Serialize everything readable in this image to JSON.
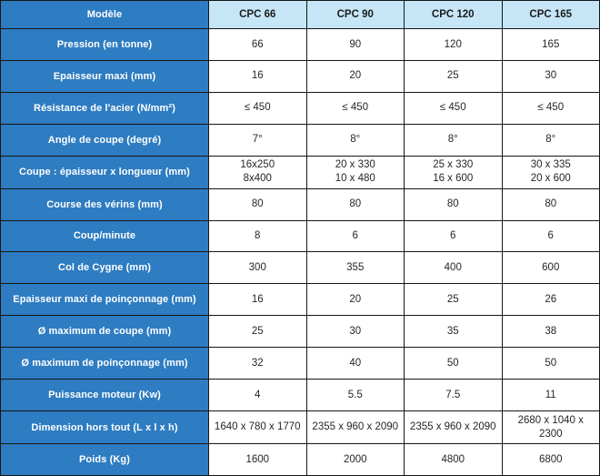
{
  "colors": {
    "primary_blue": "#2e7cc1",
    "header_light_blue": "#c6e6f8",
    "border_black": "#161616",
    "value_text": "#262626"
  },
  "table": {
    "header": {
      "model_label": "Modèle",
      "columns": [
        "CPC 66",
        "CPC 90",
        "CPC 120",
        "CPC 165"
      ]
    },
    "rows": [
      {
        "label": "Pression (en tonne)",
        "values": [
          "66",
          "90",
          "120",
          "165"
        ]
      },
      {
        "label": "Epaisseur maxi (mm)",
        "values": [
          "16",
          "20",
          "25",
          "30"
        ]
      },
      {
        "label": "Résistance de l'acier (N/mm²)",
        "values": [
          "≤ 450",
          "≤ 450",
          "≤ 450",
          "≤ 450"
        ]
      },
      {
        "label": "Angle de coupe (degré)",
        "values": [
          "7°",
          "8°",
          "8°",
          "8°"
        ]
      },
      {
        "label": "Coupe : épaisseur x longueur (mm)",
        "values": [
          "16x250\n8x400",
          "20 x 330\n10 x 480",
          "25 x 330\n16 x 600",
          "30 x 335\n20 x 600"
        ]
      },
      {
        "label": "Course des vérins (mm)",
        "values": [
          "80",
          "80",
          "80",
          "80"
        ]
      },
      {
        "label": "Coup/minute",
        "values": [
          "8",
          "6",
          "6",
          "6"
        ]
      },
      {
        "label": "Col de Cygne (mm)",
        "values": [
          "300",
          "355",
          "400",
          "600"
        ]
      },
      {
        "label": "Epaisseur maxi de poinçonnage (mm)",
        "values": [
          "16",
          "20",
          "25",
          "26"
        ]
      },
      {
        "label": "Ø maximum de coupe (mm)",
        "values": [
          "25",
          "30",
          "35",
          "38"
        ]
      },
      {
        "label": "Ø maximum de poinçonnage (mm)",
        "values": [
          "32",
          "40",
          "50",
          "50"
        ]
      },
      {
        "label": "Puissance moteur (Kw)",
        "values": [
          "4",
          "5.5",
          "7.5",
          "11"
        ]
      },
      {
        "label": "Dimension hors tout (L x l x h)",
        "values": [
          "1640 x 780 x 1770",
          "2355 x 960 x 2090",
          "2355 x 960 x 2090",
          "2680 x 1040 x 2300"
        ]
      },
      {
        "label": "Poids (Kg)",
        "values": [
          "1600",
          "2000",
          "4800",
          "6800"
        ]
      }
    ]
  }
}
